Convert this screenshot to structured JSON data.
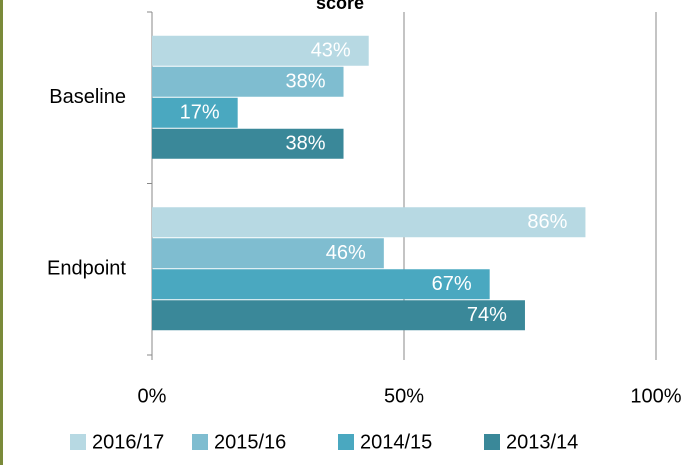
{
  "chart_data": {
    "type": "bar",
    "orientation": "horizontal",
    "title": "score",
    "categories": [
      "Baseline",
      "Endpoint"
    ],
    "series": [
      {
        "name": "2016/17",
        "color": "#b7d9e3",
        "values": [
          43,
          86
        ],
        "value_labels": [
          "43%",
          "86%"
        ]
      },
      {
        "name": "2015/16",
        "color": "#7fbdd0",
        "values": [
          38,
          46
        ],
        "value_labels": [
          "38%",
          "46%"
        ]
      },
      {
        "name": "2014/15",
        "color": "#4aa8c0",
        "values": [
          17,
          67
        ],
        "value_labels": [
          "17%",
          "67%"
        ]
      },
      {
        "name": "2013/14",
        "color": "#3a8899",
        "values": [
          38,
          74
        ],
        "value_labels": [
          "38%",
          "74%"
        ]
      }
    ],
    "xlim": [
      0,
      100
    ],
    "xticks": [
      {
        "value": 0,
        "label": "0%"
      },
      {
        "value": 50,
        "label": "50%"
      },
      {
        "value": 100,
        "label": "100%"
      }
    ],
    "grid": true,
    "legend": "bottom"
  }
}
